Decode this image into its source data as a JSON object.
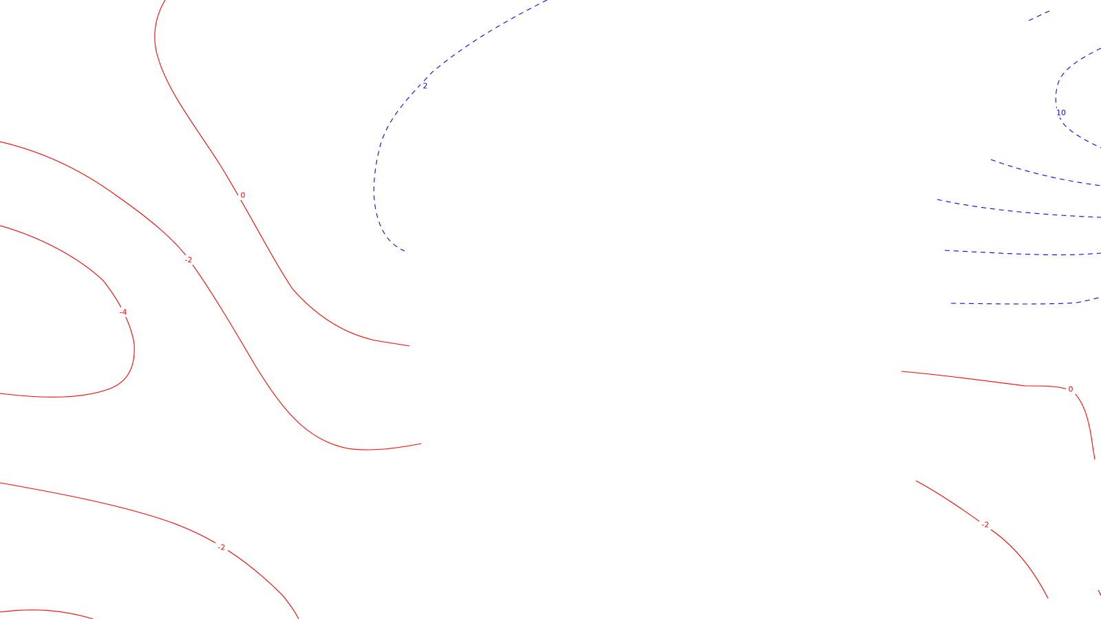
{
  "map": {
    "type": "contour",
    "colors": {
      "background": "#ffffff",
      "positive": "#0000ff",
      "negative": "#ff0000"
    },
    "line_styles": {
      "positive": "dashed",
      "negative": "solid"
    },
    "labels": [
      "2",
      "10",
      "0",
      "-2",
      "-4",
      "-2",
      "0",
      "-2"
    ]
  }
}
